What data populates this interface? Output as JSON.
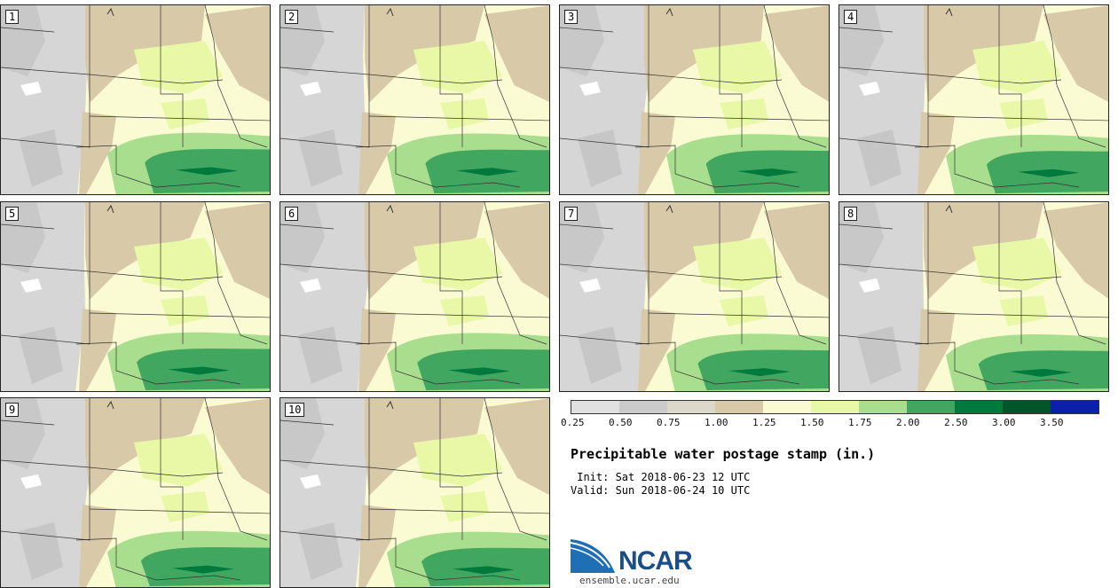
{
  "panels": [
    "1",
    "2",
    "3",
    "4",
    "5",
    "6",
    "7",
    "8",
    "9",
    "10"
  ],
  "legend": {
    "colors": [
      "#e0e0e0",
      "#cbcbcb",
      "#ddd9ca",
      "#d8c9a8",
      "#fbfbd3",
      "#e8f8a6",
      "#a9de8f",
      "#41a760",
      "#00793d",
      "#00552a",
      "#0a1faa"
    ],
    "ticks": [
      "0.25",
      "0.50",
      "0.75",
      "1.00",
      "1.25",
      "1.50",
      "1.75",
      "2.00",
      "2.50",
      "3.00",
      "3.50"
    ]
  },
  "title": "Precipitable water postage stamp (in.)",
  "init_line": " Init: Sat 2018-06-23 12 UTC",
  "valid_line": "Valid: Sun 2018-06-24 10 UTC",
  "logo": {
    "name": "NCAR",
    "url": "ensemble.ucar.edu"
  }
}
